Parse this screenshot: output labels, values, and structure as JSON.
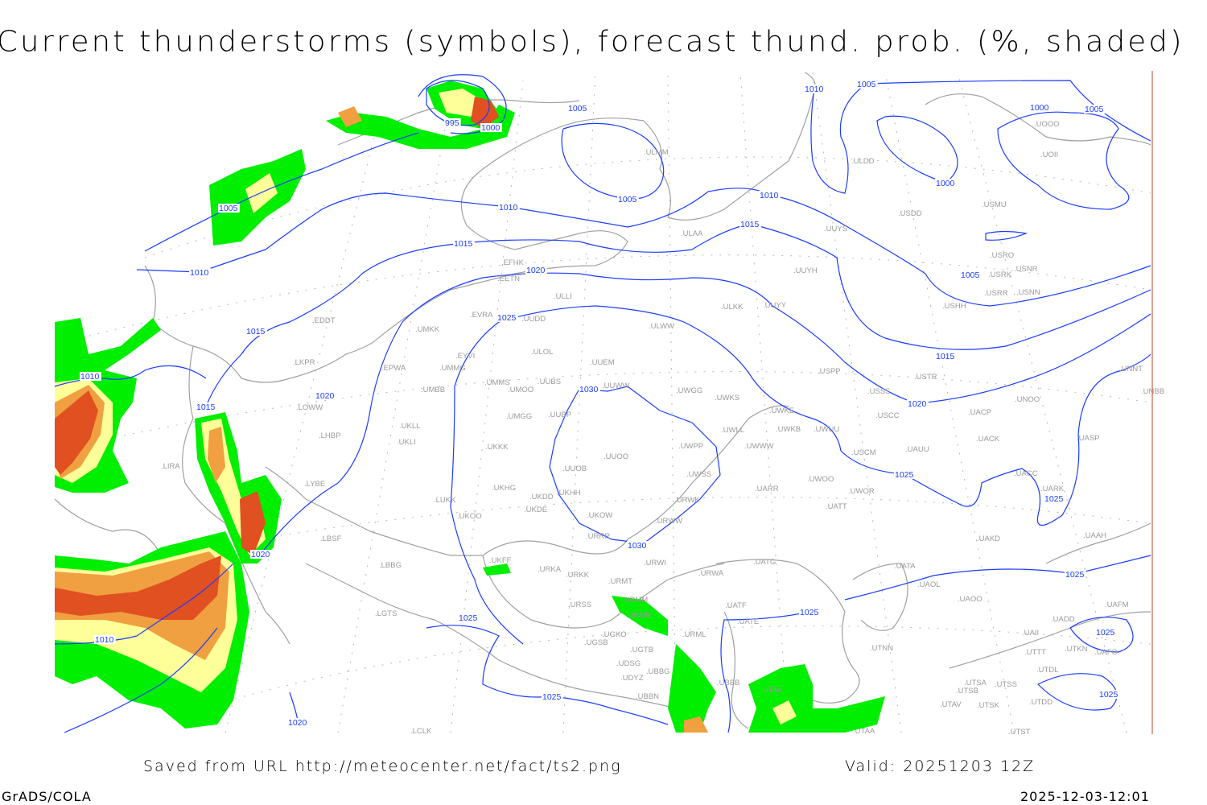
{
  "title": "Current thunderstorms (symbols), forecast thund. prob. (%, shaded)",
  "footer": {
    "source": "Saved from URL http://meteocenter.net/fact/ts2.png",
    "valid": "Valid: 20251203 12Z",
    "software": "GrADS/COLA",
    "timestamp": "2025-12-03-12:01"
  },
  "colors": {
    "isobar": "#1a3cff",
    "coastline": "#a0a0a0",
    "prob_low": "#00ee00",
    "prob_mid": "#ffff99",
    "prob_high": "#f0a040",
    "prob_max": "#e05020"
  },
  "isobar_labels": [
    "995",
    "1000",
    "1005",
    "1005",
    "1010",
    "1015",
    "1020",
    "1025",
    "1030",
    "1030",
    "1005",
    "1010",
    "1015",
    "1010",
    "1015",
    "1020",
    "1020",
    "1010",
    "1025",
    "1025",
    "1020",
    "1010",
    "1005",
    "1000",
    "1000",
    "1005",
    "1010",
    "1015",
    "1005",
    "1015",
    "1020",
    "1025",
    "1025",
    "1025",
    "1025",
    "1025",
    "1025"
  ],
  "stations": [
    "ULMM",
    "ULDD",
    "USDD",
    "USMU",
    "UOOO",
    "UOII",
    "ULAA",
    "UUYS",
    "USRO",
    "USNR",
    "USRK",
    "USRR",
    "USNN",
    "USHH",
    "UUYH",
    "EFHK",
    "EETN",
    "ULLI",
    "ULKK",
    "UUYY",
    "EVRA",
    "UUDD",
    "UMKK",
    "ULWW",
    "EDDT",
    "EYVI",
    "ULOL",
    "UUEM",
    "UMMG",
    "EPWA",
    "LKPR",
    "UMMS",
    "UMOO",
    "UUBS",
    "UUWW",
    "UWGG",
    "UWKS",
    "UMBB",
    "USPP",
    "USTR",
    "USSS",
    "UNNT",
    "UNBB",
    "UNOO",
    "UWKE",
    "UACP",
    "USCC",
    "UMGG",
    "UUBP",
    "LOWW",
    "UKLL",
    "UWKB",
    "UWUU",
    "UWLL",
    "LHBP",
    "UKLI",
    "UACK",
    "UASP",
    "UWWW",
    "UWPP",
    "USCM",
    "UAUU",
    "UKKK",
    "UUOO",
    "UUOB",
    "LIRA",
    "UWSS",
    "UACC",
    "UARK",
    "UARR",
    "UWOO",
    "UWOR",
    "LYBE",
    "UKHH",
    "UKHG",
    "UKDD",
    "UKDE",
    "LUKK",
    "UATT",
    "UKOW",
    "URWK",
    "URWW",
    "UKOO",
    "URRR",
    "LBSF",
    "UAKD",
    "UAAH",
    "UKFF",
    "LBBG",
    "URWI",
    "UATG",
    "UATA",
    "URKA",
    "URKK",
    "URMT",
    "URWA",
    "UAOL",
    "UAOO",
    "UAFM",
    "URMM",
    "URSS",
    "URMN",
    "UATF",
    "UATE",
    "UADD",
    "LGTS",
    "UGKO",
    "URML",
    "UAII",
    "UGSB",
    "UGTB",
    "UTTT",
    "UTKN",
    "UAFO",
    "UDSG",
    "UBBG",
    "UTDL",
    "UTNN",
    "UDYZ",
    "UTSA",
    "UTSS",
    "UTSB",
    "UTAK",
    "UBBN",
    "UBBB",
    "UTAV",
    "UTSK",
    "UTDD",
    "UTAA",
    "UTST",
    "LCLK"
  ]
}
